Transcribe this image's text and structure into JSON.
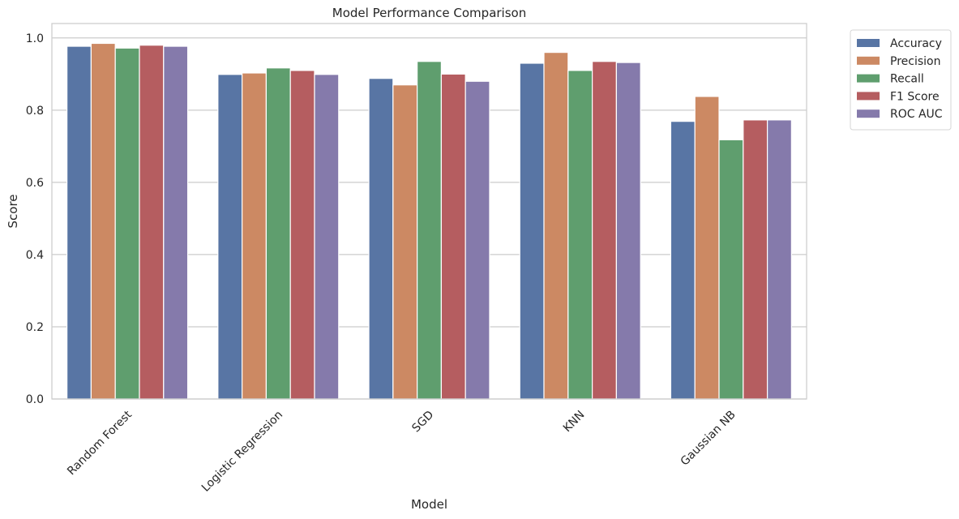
{
  "chart_data": {
    "type": "bar",
    "title": "Model Performance Comparison",
    "xlabel": "Model",
    "ylabel": "Score",
    "ylim": [
      0,
      1.04
    ],
    "yticks": [
      0.0,
      0.2,
      0.4,
      0.6,
      0.8,
      1.0
    ],
    "ytick_labels": [
      "0.0",
      "0.2",
      "0.4",
      "0.6",
      "0.8",
      "1.0"
    ],
    "categories": [
      "Random Forest",
      "Logistic Regression",
      "SGD",
      "KNN",
      "Gaussian NB"
    ],
    "category_label_rotation_deg": -45,
    "grid": "horizontal",
    "legend_position": "outside-top-right",
    "series": [
      {
        "name": "Accuracy",
        "color": "#5875a4",
        "values": [
          0.977,
          0.899,
          0.888,
          0.93,
          0.769
        ]
      },
      {
        "name": "Precision",
        "color": "#cc8963",
        "values": [
          0.985,
          0.903,
          0.87,
          0.96,
          0.838
        ]
      },
      {
        "name": "Recall",
        "color": "#5f9e6e",
        "values": [
          0.972,
          0.917,
          0.935,
          0.91,
          0.718
        ]
      },
      {
        "name": "F1 Score",
        "color": "#b55d60",
        "values": [
          0.98,
          0.91,
          0.9,
          0.935,
          0.773
        ]
      },
      {
        "name": "ROC AUC",
        "color": "#857aab",
        "values": [
          0.977,
          0.899,
          0.88,
          0.932,
          0.773
        ]
      }
    ]
  }
}
